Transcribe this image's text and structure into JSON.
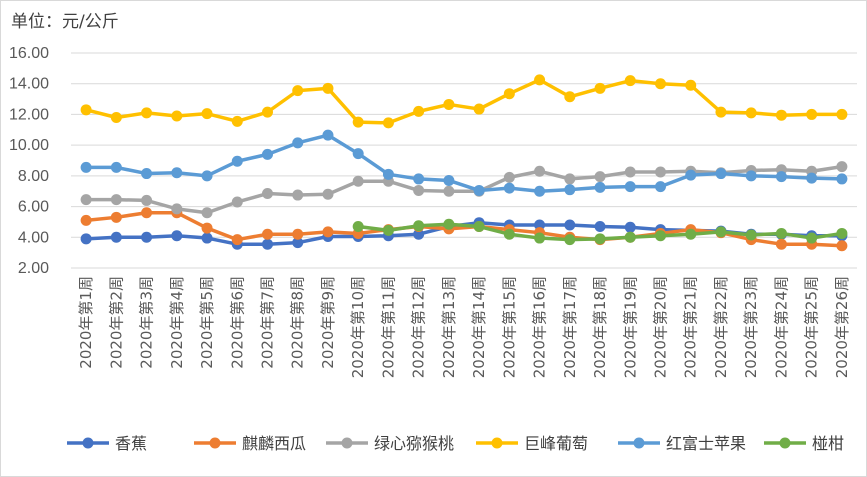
{
  "unit_label": "单位：元/公斤",
  "chart_data": {
    "type": "line",
    "ylabel": "单位：元/公斤",
    "ylim": [
      2.0,
      16.0
    ],
    "yticks": [
      "2.00",
      "4.00",
      "6.00",
      "8.00",
      "10.00",
      "12.00",
      "14.00",
      "16.00"
    ],
    "grid": "horizontal",
    "legend_position": "bottom",
    "categories": [
      "2020年第1周",
      "2020年第2周",
      "2020年第3周",
      "2020年第4周",
      "2020年第5周",
      "2020年第6周",
      "2020年第7周",
      "2020年第8周",
      "2020年第9周",
      "2020年第10周",
      "2020年第11周",
      "2020年第12周",
      "2020年第13周",
      "2020年第14周",
      "2020年第15周",
      "2020年第16周",
      "2020年第17周",
      "2020年第18周",
      "2020年第19周",
      "2020年第20周",
      "2020年第21周",
      "2020年第22周",
      "2020年第23周",
      "2020年第24周",
      "2020年第25周",
      "2020年第26周"
    ],
    "series": [
      {
        "name": "香蕉",
        "color": "#4472C4",
        "values": [
          3.9,
          4.0,
          4.0,
          4.1,
          3.95,
          3.55,
          3.55,
          3.65,
          4.05,
          4.05,
          4.1,
          4.2,
          4.7,
          4.95,
          4.8,
          4.8,
          4.8,
          4.7,
          4.65,
          4.5,
          4.45,
          4.4,
          4.2,
          4.2,
          4.1,
          4.1
        ]
      },
      {
        "name": "麒麟西瓜",
        "color": "#ED7D31",
        "values": [
          5.1,
          5.3,
          5.6,
          5.6,
          4.6,
          3.85,
          4.2,
          4.2,
          4.35,
          4.25,
          4.5,
          4.7,
          4.55,
          4.7,
          4.5,
          4.3,
          4.0,
          3.85,
          4.0,
          4.25,
          4.5,
          4.3,
          3.85,
          3.55,
          3.55,
          3.45
        ]
      },
      {
        "name": "绿心猕猴桃",
        "color": "#A5A5A5",
        "values": [
          6.45,
          6.45,
          6.4,
          5.85,
          5.6,
          6.3,
          6.85,
          6.75,
          6.8,
          7.65,
          7.65,
          7.05,
          7.0,
          7.0,
          7.9,
          8.3,
          7.8,
          7.95,
          8.25,
          8.25,
          8.3,
          8.2,
          8.35,
          8.4,
          8.3,
          8.6
        ]
      },
      {
        "name": "巨峰葡萄",
        "color": "#FFC000",
        "values": [
          12.3,
          11.8,
          12.1,
          11.9,
          12.05,
          11.55,
          12.15,
          13.55,
          13.7,
          11.5,
          11.45,
          12.2,
          12.65,
          12.35,
          13.35,
          14.25,
          13.15,
          13.7,
          14.2,
          14.0,
          13.9,
          12.15,
          12.1,
          11.95,
          12.0,
          12.0
        ]
      },
      {
        "name": "红富士苹果",
        "color": "#5B9BD5",
        "values": [
          8.55,
          8.55,
          8.15,
          8.2,
          8.0,
          8.95,
          9.4,
          10.15,
          10.65,
          9.45,
          8.1,
          7.8,
          7.7,
          7.05,
          7.2,
          7.0,
          7.1,
          7.25,
          7.3,
          7.3,
          8.05,
          8.15,
          8.0,
          7.95,
          7.85,
          7.8
        ]
      },
      {
        "name": "椪柑",
        "color": "#70AD47",
        "values": [
          null,
          null,
          null,
          null,
          null,
          null,
          null,
          null,
          null,
          4.7,
          4.45,
          4.75,
          4.85,
          4.7,
          4.2,
          3.95,
          3.85,
          3.9,
          4.0,
          4.1,
          4.2,
          4.35,
          4.15,
          4.25,
          3.95,
          4.25
        ]
      }
    ]
  }
}
